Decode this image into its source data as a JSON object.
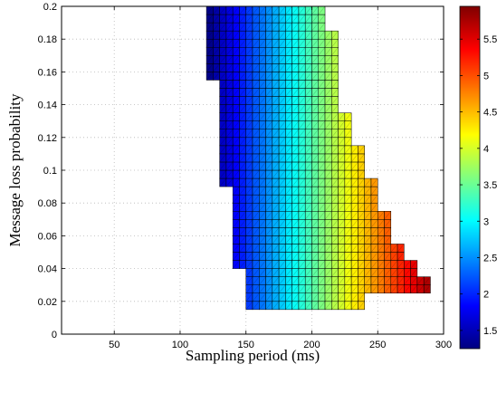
{
  "chart_data": {
    "type": "heatmap",
    "title": "",
    "xlabel": "Sampling period (ms)",
    "ylabel": "Message loss probability",
    "xlim": [
      10,
      300
    ],
    "ylim": [
      0,
      0.2
    ],
    "xticks": [
      50,
      100,
      150,
      200,
      250,
      300
    ],
    "yticks": [
      0,
      0.02,
      0.04,
      0.06,
      0.08,
      0.1,
      0.12,
      0.14,
      0.16,
      0.18,
      0.2
    ],
    "grid": true,
    "cell_size": {
      "x_ms": 5,
      "y_prob": 0.005
    },
    "x_cell_starts": [
      120,
      125,
      130,
      135,
      140,
      145,
      150,
      155,
      160,
      165,
      170,
      175,
      180,
      185,
      190,
      195,
      200,
      205,
      210,
      215,
      220,
      225,
      230,
      235,
      240,
      245,
      250,
      255,
      260,
      265,
      270,
      275,
      280,
      285
    ],
    "colorbar": {
      "range": [
        1.25,
        5.95
      ],
      "ticks": [
        1.5,
        2,
        2.5,
        3,
        3.5,
        4,
        4.5,
        5,
        5.5
      ],
      "colormap": "jet"
    },
    "value_model": "value = 1.3 + (sampling_period - 120) * 0.0269",
    "row_extents": [
      {
        "y_from": 0.015,
        "y_to": 0.025,
        "x_from": 150,
        "x_to": 240
      },
      {
        "y_from": 0.025,
        "y_to": 0.035,
        "x_from": 150,
        "x_to": 290
      },
      {
        "y_from": 0.035,
        "y_to": 0.04,
        "x_from": 150,
        "x_to": 280
      },
      {
        "y_from": 0.04,
        "y_to": 0.045,
        "x_from": 140,
        "x_to": 280
      },
      {
        "y_from": 0.045,
        "y_to": 0.055,
        "x_from": 140,
        "x_to": 270
      },
      {
        "y_from": 0.055,
        "y_to": 0.065,
        "x_from": 140,
        "x_to": 260
      },
      {
        "y_from": 0.065,
        "y_to": 0.075,
        "x_from": 140,
        "x_to": 260
      },
      {
        "y_from": 0.075,
        "y_to": 0.09,
        "x_from": 140,
        "x_to": 250
      },
      {
        "y_from": 0.09,
        "y_to": 0.095,
        "x_from": 130,
        "x_to": 250
      },
      {
        "y_from": 0.095,
        "y_to": 0.115,
        "x_from": 130,
        "x_to": 240
      },
      {
        "y_from": 0.115,
        "y_to": 0.135,
        "x_from": 130,
        "x_to": 230
      },
      {
        "y_from": 0.135,
        "y_to": 0.155,
        "x_from": 130,
        "x_to": 220
      },
      {
        "y_from": 0.155,
        "y_to": 0.165,
        "x_from": 120,
        "x_to": 220
      },
      {
        "y_from": 0.165,
        "y_to": 0.185,
        "x_from": 120,
        "x_to": 220
      },
      {
        "y_from": 0.185,
        "y_to": 0.2,
        "x_from": 120,
        "x_to": 210
      }
    ]
  }
}
